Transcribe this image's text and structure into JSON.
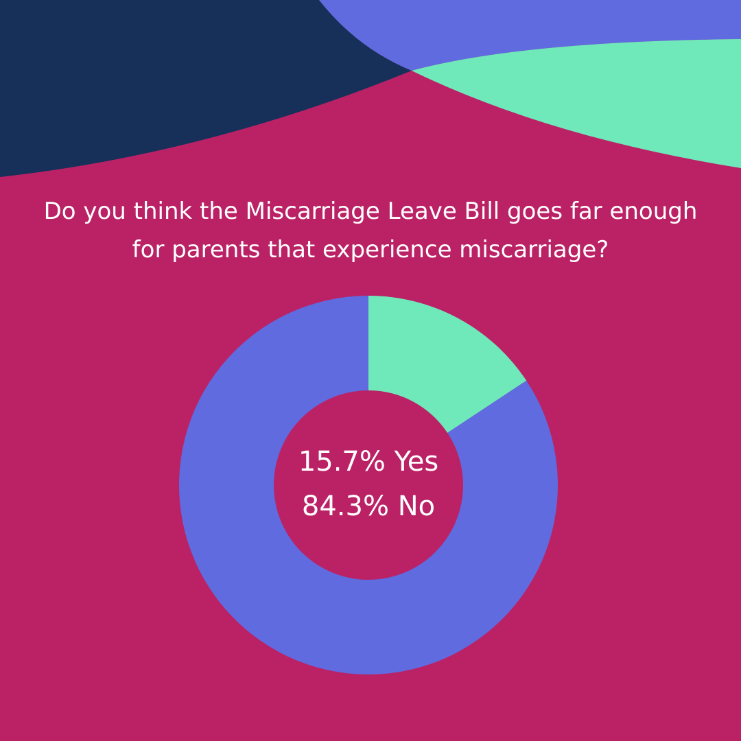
{
  "chart_data": {
    "type": "donut",
    "title": "Do you think the Miscarriage Leave Bill goes far enough for parents that experience miscarriage?",
    "values": [
      15.7,
      84.3
    ],
    "value_labels": [
      "15.7% Yes",
      "84.3% No"
    ],
    "colors": [
      "#6FE9BA",
      "#5F6BDF"
    ]
  }
}
